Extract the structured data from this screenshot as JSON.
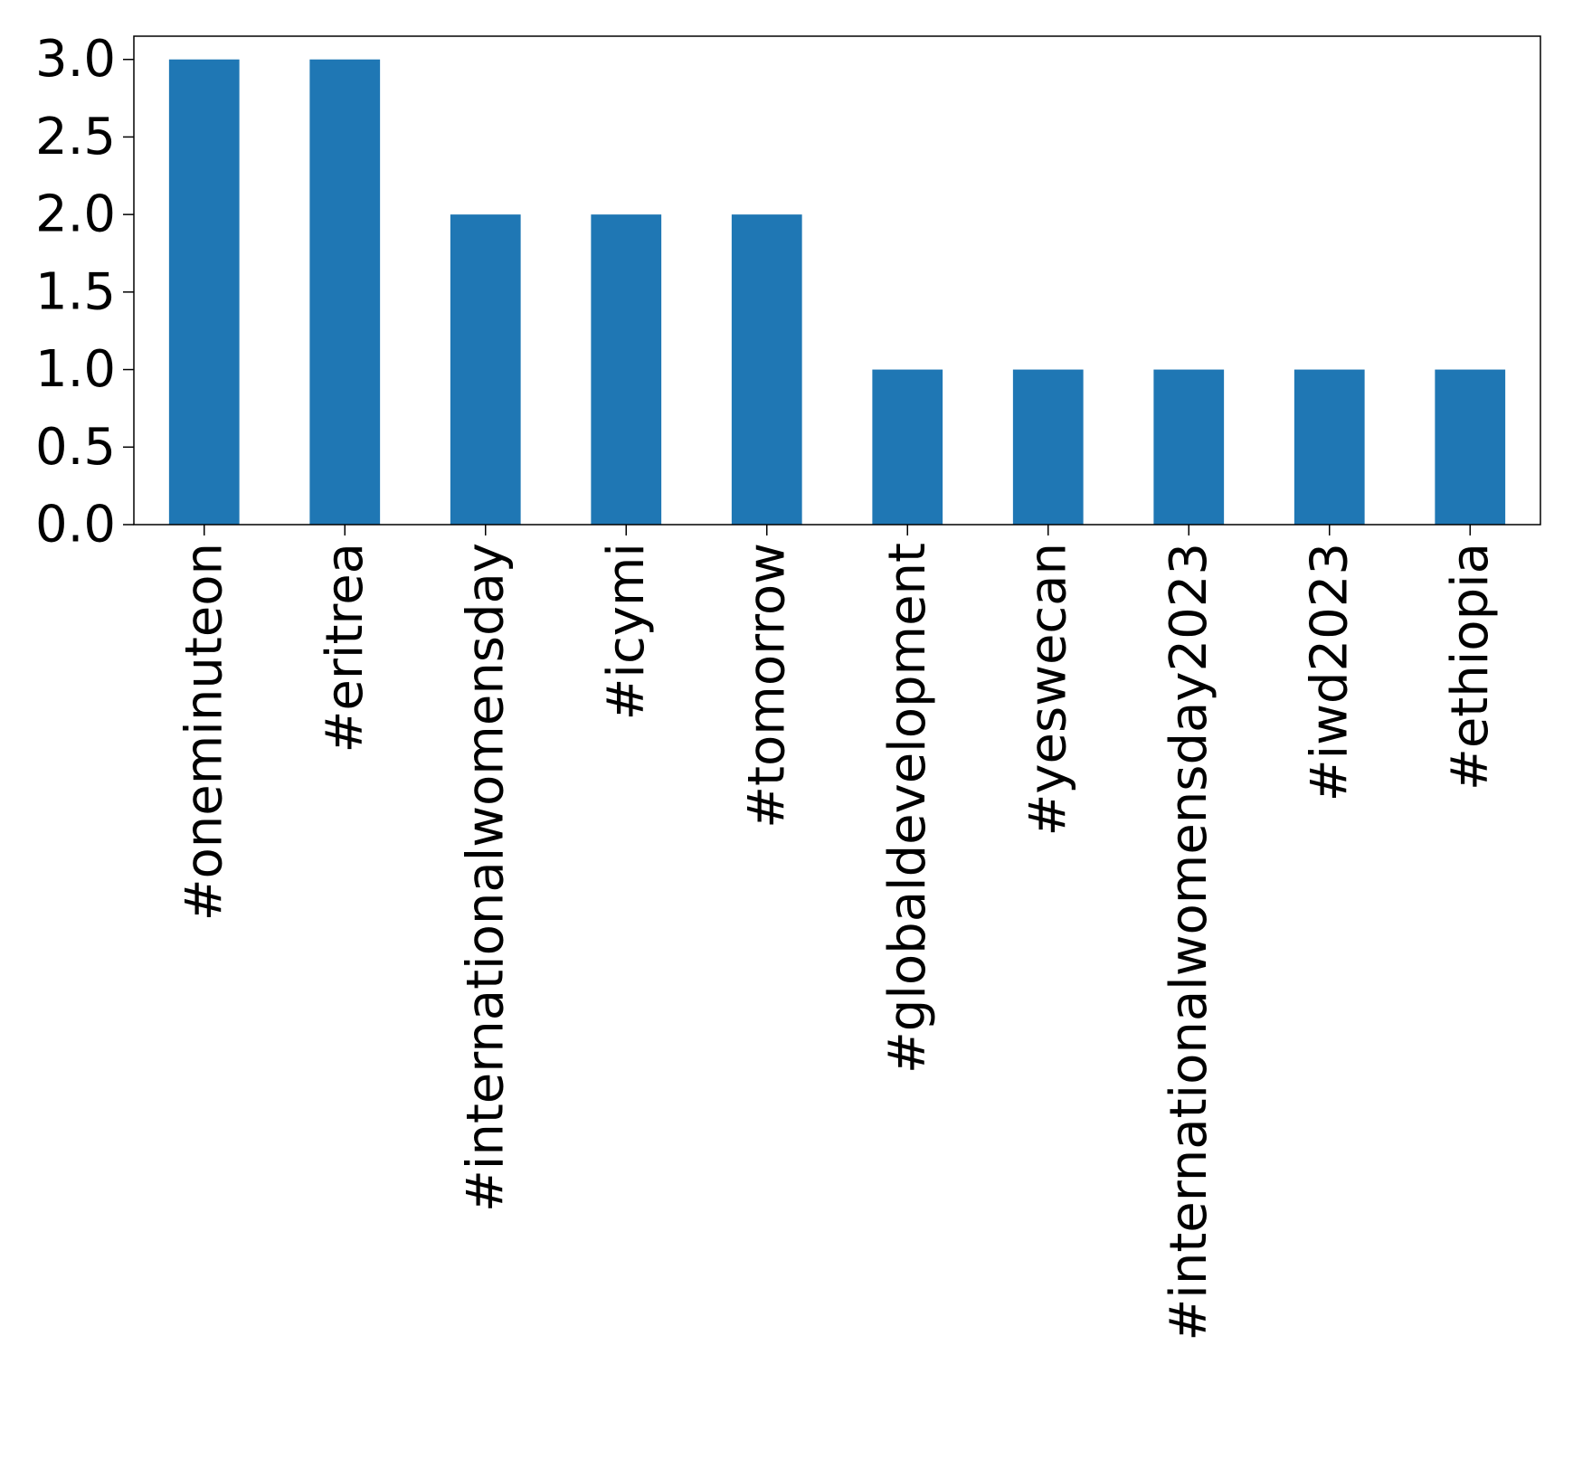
{
  "chart_data": {
    "type": "bar",
    "categories": [
      "#oneminuteon",
      "#eritrea",
      "#internationalwomensday",
      "#icymi",
      "#tomorrow",
      "#globaldevelopment",
      "#yeswecan",
      "#internationalwomensday2023",
      "#iwd2023",
      "#ethiopia"
    ],
    "values": [
      3,
      3,
      2,
      2,
      2,
      1,
      1,
      1,
      1,
      1
    ],
    "title": "",
    "xlabel": "",
    "ylabel": "",
    "ylim": [
      0,
      3.15
    ],
    "yticks": [
      "0.0",
      "0.5",
      "1.0",
      "1.5",
      "2.0",
      "2.5",
      "3.0"
    ],
    "grid": false,
    "legend": "none",
    "bar_color": "#1f77b4"
  }
}
